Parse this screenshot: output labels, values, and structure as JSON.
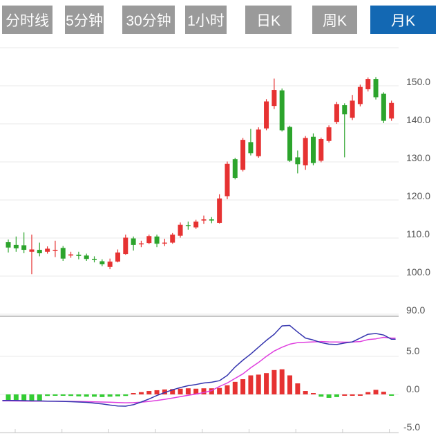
{
  "tabs": {
    "items": [
      {
        "label": "分时线",
        "selected": false
      },
      {
        "label": "5分钟",
        "selected": false
      },
      {
        "label": "30分钟",
        "selected": false
      },
      {
        "label": "1小时",
        "selected": false
      },
      {
        "label": "日K",
        "selected": false
      },
      {
        "label": "周K",
        "selected": false
      },
      {
        "label": "月K",
        "selected": true
      }
    ],
    "default_bg": "#9a9a9a",
    "selected_bg": "#1368b3",
    "text_color": "#ffffff"
  },
  "chart_data": {
    "type": "candlestick",
    "title": "",
    "legend_position": "none",
    "grid": "horizontal-only",
    "price_axis": {
      "min": 90,
      "max": 160,
      "grid_values": [
        160,
        150,
        140,
        130,
        120,
        110,
        100,
        90
      ],
      "tick_values": [
        150,
        140,
        130,
        120,
        110,
        100,
        90
      ],
      "labels": [
        "150.0",
        "140.0",
        "130.0",
        "120.0",
        "110.0",
        "100.0",
        "90.0"
      ]
    },
    "indicator_axis": {
      "min": -5,
      "max": 10,
      "tick_values": [
        5,
        0,
        -5
      ],
      "labels": [
        "5.0",
        "0.0",
        "-5.0"
      ]
    },
    "candles_ohlc": [
      [
        108.9,
        109.6,
        106.2,
        107.5
      ],
      [
        108.2,
        110.4,
        106.4,
        107.3
      ],
      [
        108.1,
        111.5,
        106.0,
        106.9
      ],
      [
        106.4,
        110.9,
        100.5,
        107.0
      ],
      [
        106.9,
        108.8,
        105.2,
        106.0
      ],
      [
        106.4,
        107.8,
        105.9,
        107.2
      ],
      [
        106.7,
        109.3,
        105.0,
        106.9
      ],
      [
        107.4,
        107.9,
        104.0,
        104.6
      ],
      [
        105.4,
        106.4,
        104.8,
        105.7
      ],
      [
        105.6,
        106.4,
        104.4,
        105.3
      ],
      [
        105.4,
        105.9,
        104.0,
        104.5
      ],
      [
        104.5,
        105.2,
        103.6,
        104.3
      ],
      [
        103.9,
        104.4,
        102.6,
        103.1
      ],
      [
        102.4,
        104.6,
        101.8,
        103.8
      ],
      [
        103.8,
        107.0,
        103.6,
        106.2
      ],
      [
        105.8,
        110.9,
        105.6,
        110.1
      ],
      [
        109.9,
        110.4,
        106.7,
        108.2
      ],
      [
        108.4,
        109.3,
        107.6,
        108.6
      ],
      [
        108.7,
        110.9,
        108.4,
        110.5
      ],
      [
        110.4,
        110.9,
        107.6,
        108.5
      ],
      [
        108.6,
        109.8,
        107.9,
        108.8
      ],
      [
        108.8,
        111.3,
        108.5,
        110.9
      ],
      [
        110.6,
        114.1,
        110.1,
        113.5
      ],
      [
        113.4,
        114.3,
        112.2,
        113.2
      ],
      [
        112.8,
        114.8,
        112.4,
        114.3
      ],
      [
        114.6,
        115.9,
        113.7,
        114.9
      ],
      [
        114.9,
        115.5,
        113.9,
        114.6
      ],
      [
        114.0,
        121.5,
        113.8,
        120.4
      ],
      [
        121.0,
        130.1,
        120.2,
        129.5
      ],
      [
        130.7,
        131.1,
        125.4,
        125.8
      ],
      [
        127.9,
        136.3,
        127.5,
        135.8
      ],
      [
        135.2,
        138.7,
        131.7,
        132.3
      ],
      [
        131.5,
        139.1,
        131.1,
        138.5
      ],
      [
        138.8,
        146.5,
        138.3,
        145.9
      ],
      [
        144.7,
        151.9,
        143.9,
        148.9
      ],
      [
        148.8,
        149.3,
        138.0,
        138.3
      ],
      [
        139.2,
        139.5,
        130.0,
        130.3
      ],
      [
        131.2,
        133.0,
        127.0,
        129.4
      ],
      [
        129.1,
        136.8,
        127.9,
        136.3
      ],
      [
        136.6,
        137.5,
        129.1,
        129.7
      ],
      [
        130.3,
        136.4,
        129.9,
        136.0
      ],
      [
        135.5,
        139.6,
        135.1,
        139.1
      ],
      [
        140.5,
        145.8,
        140.0,
        145.2
      ],
      [
        144.9,
        145.4,
        131.2,
        142.5
      ],
      [
        141.6,
        147.6,
        141.0,
        146.1
      ],
      [
        145.2,
        150.3,
        144.6,
        149.7
      ],
      [
        149.1,
        152.2,
        148.5,
        151.8
      ],
      [
        151.8,
        152.3,
        146.4,
        147.0
      ],
      [
        147.9,
        148.3,
        140.2,
        140.8
      ],
      [
        141.4,
        146.1,
        140.8,
        145.5
      ]
    ],
    "macd": {
      "hist": [
        [
          -0.8,
          "g"
        ],
        [
          -0.75,
          "g"
        ],
        [
          -0.8,
          "g"
        ],
        [
          -0.85,
          "g"
        ],
        [
          -0.8,
          "g"
        ],
        [
          -0.2,
          "g"
        ],
        [
          -0.15,
          "g"
        ],
        [
          -0.05,
          "g"
        ],
        [
          -0.2,
          "g"
        ],
        [
          -0.25,
          "g"
        ],
        [
          -0.3,
          "g"
        ],
        [
          -0.3,
          "g"
        ],
        [
          -0.35,
          "g"
        ],
        [
          -0.3,
          "g"
        ],
        [
          -0.25,
          "g"
        ],
        [
          -0.2,
          "g"
        ],
        [
          0.15,
          "r"
        ],
        [
          0.3,
          "r"
        ],
        [
          0.45,
          "r"
        ],
        [
          0.55,
          "r"
        ],
        [
          0.65,
          "r"
        ],
        [
          0.7,
          "r"
        ],
        [
          0.75,
          "r"
        ],
        [
          0.8,
          "r"
        ],
        [
          0.75,
          "r"
        ],
        [
          0.8,
          "r"
        ],
        [
          0.8,
          "r"
        ],
        [
          0.85,
          "r"
        ],
        [
          1.2,
          "r"
        ],
        [
          1.65,
          "r"
        ],
        [
          2.0,
          "r"
        ],
        [
          2.5,
          "r"
        ],
        [
          2.6,
          "r"
        ],
        [
          2.8,
          "r"
        ],
        [
          3.2,
          "r"
        ],
        [
          3.3,
          "r"
        ],
        [
          2.5,
          "r"
        ],
        [
          1.45,
          "r"
        ],
        [
          0.45,
          "r"
        ],
        [
          0.1,
          "r"
        ],
        [
          -0.3,
          "g"
        ],
        [
          -0.45,
          "g"
        ],
        [
          -0.35,
          "g"
        ],
        [
          -0.1,
          "r"
        ],
        [
          -0.1,
          "r"
        ],
        [
          -0.1,
          "r"
        ],
        [
          0.3,
          "r"
        ],
        [
          0.6,
          "r"
        ],
        [
          0.35,
          "r"
        ],
        [
          -0.15,
          "g"
        ]
      ],
      "dif": [
        -0.8,
        -0.8,
        -0.82,
        -0.85,
        -0.85,
        -0.88,
        -0.9,
        -0.92,
        -0.95,
        -1.0,
        -1.05,
        -1.15,
        -1.25,
        -1.4,
        -1.52,
        -1.55,
        -1.35,
        -1.0,
        -0.6,
        -0.15,
        0.25,
        0.6,
        0.9,
        1.15,
        1.3,
        1.5,
        1.6,
        1.8,
        2.5,
        3.6,
        4.5,
        5.3,
        6.2,
        7.1,
        7.9,
        9.0,
        9.05,
        8.2,
        7.4,
        7.15,
        6.8,
        6.6,
        6.55,
        6.75,
        6.9,
        7.4,
        7.9,
        8.0,
        7.8,
        7.25
      ],
      "dea": [
        -0.85,
        -0.86,
        -0.87,
        -0.88,
        -0.89,
        -0.9,
        -0.9,
        -0.91,
        -0.92,
        -0.93,
        -0.95,
        -0.97,
        -1.0,
        -1.03,
        -1.06,
        -1.1,
        -1.08,
        -1.02,
        -0.92,
        -0.8,
        -0.65,
        -0.48,
        -0.3,
        -0.12,
        0.05,
        0.25,
        0.5,
        1.05,
        1.5,
        2.1,
        2.7,
        3.5,
        4.2,
        5.0,
        5.7,
        6.2,
        6.6,
        6.8,
        6.85,
        6.9,
        6.95,
        6.9,
        6.88,
        6.86,
        6.88,
        6.95,
        7.2,
        7.3,
        7.5,
        7.4
      ]
    },
    "colors": {
      "up": "#e63232",
      "down": "#2ca42c",
      "hist_down": "#33cc33",
      "dif_line": "#3434ae",
      "dea_line": "#df3edf",
      "grid": "#e9e9e9",
      "separator": "#c6c6c6",
      "axis_line": "#cccccc",
      "axis_text": "#555555"
    }
  }
}
